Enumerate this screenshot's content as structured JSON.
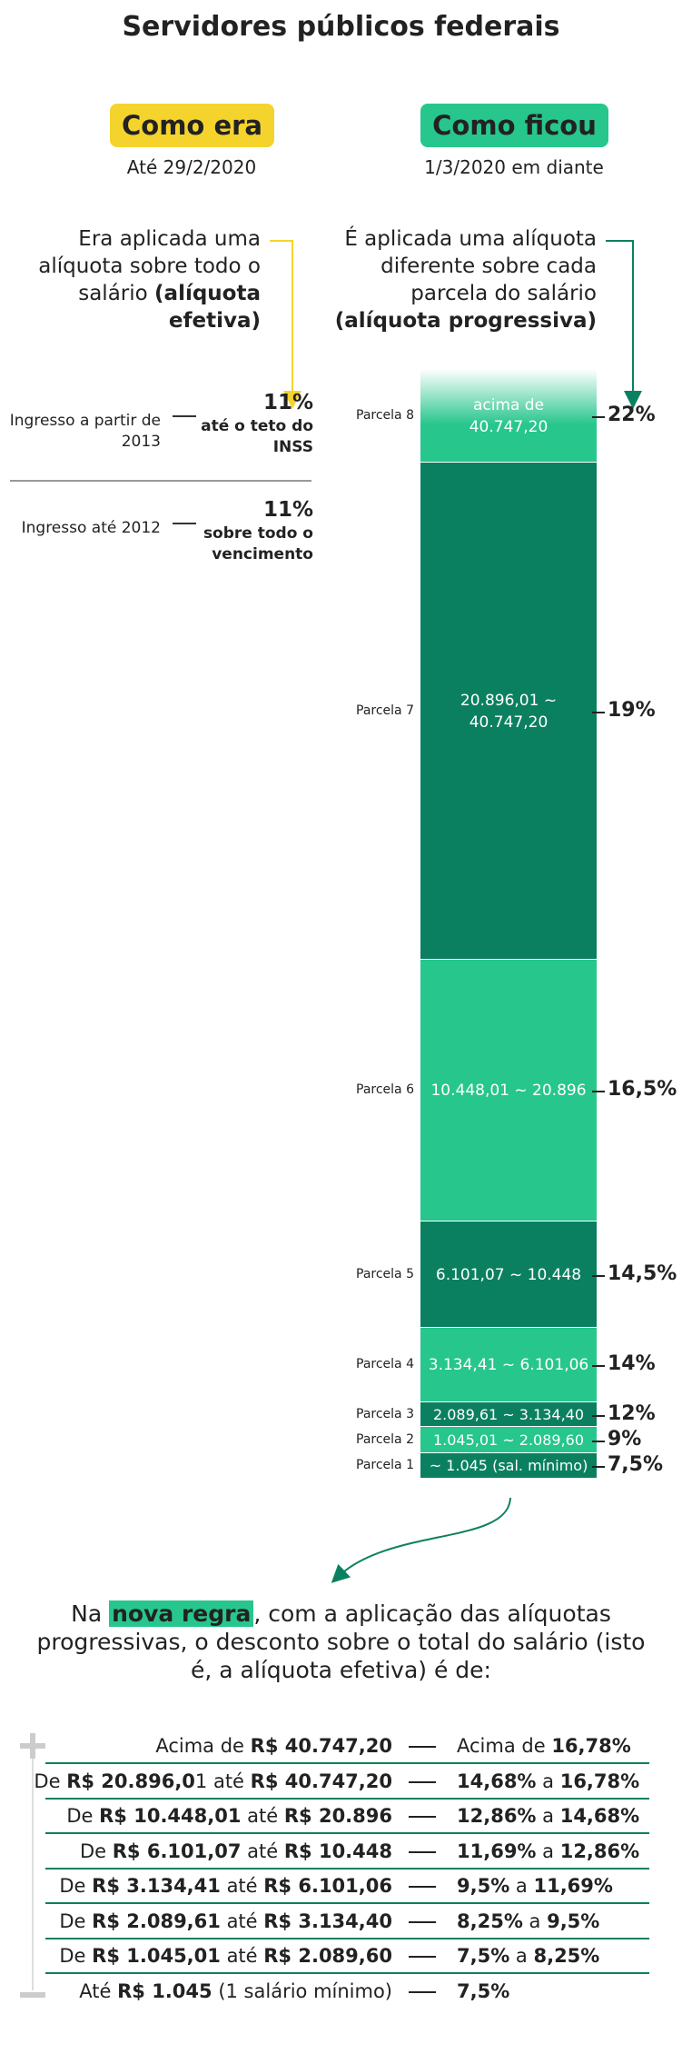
{
  "title": "Servidores públicos federais",
  "before": {
    "label": "Como era",
    "date": "Até 29/2/2020",
    "text": "Era aplicada uma alíquota sobre todo o salário",
    "text_bold": "(alíquota efetiva)",
    "rules": [
      {
        "group": "Ingresso a partir de 2013",
        "rate": "11%",
        "scope": "até o teto do INSS"
      },
      {
        "group": "Ingresso até 2012",
        "rate": "11%",
        "scope": "sobre todo o vencimento"
      }
    ]
  },
  "after": {
    "label": "Como ficou",
    "date": "1/3/2020 em diante",
    "text": "É aplicada uma alíquota diferente sobre cada parcela do salário",
    "text_bold": "(alíquota progressiva)",
    "parcels": [
      {
        "name": "Parcela 8",
        "range": "acima de 40.747,20",
        "rate": "22%"
      },
      {
        "name": "Parcela 7",
        "range": "20.896,01 ~ 40.747,20",
        "rate": "19%"
      },
      {
        "name": "Parcela 6",
        "range": "10.448,01 ~ 20.896",
        "rate": "16,5%"
      },
      {
        "name": "Parcela 5",
        "range": "6.101,07 ~ 10.448",
        "rate": "14,5%"
      },
      {
        "name": "Parcela 4",
        "range": "3.134,41 ~ 6.101,06",
        "rate": "14%"
      },
      {
        "name": "Parcela 3",
        "range": "2.089,61 ~ 3.134,40",
        "rate": "12%"
      },
      {
        "name": "Parcela 2",
        "range": "1.045,01 ~ 2.089,60",
        "rate": "9%"
      },
      {
        "name": "Parcela 1",
        "range": "~ 1.045 (sal. mínimo)",
        "rate": "7,5%"
      }
    ]
  },
  "summary": {
    "text_start": "Na ",
    "highlight": "nova regra",
    "text_end": ", com a aplicação das alíquotas progressivas, o desconto sobre o total do salário (isto é, a alíquota efetiva) é de:",
    "rows": [
      {
        "left": [
          "Acima de ",
          "R$ 40.747,20"
        ],
        "right": [
          "Acima de ",
          "16,78%"
        ]
      },
      {
        "left": [
          "De ",
          "R$ 20.896,0",
          "1 até ",
          "R$ 40.747,20"
        ],
        "right": [
          "",
          "14,68%",
          " a ",
          "16,78%"
        ]
      },
      {
        "left": [
          "De ",
          "R$ 10.448,01",
          " até ",
          "R$ 20.896"
        ],
        "right": [
          "",
          "12,86%",
          " a ",
          "14,68%"
        ]
      },
      {
        "left": [
          "De ",
          "R$ 6.101,07",
          " até ",
          "R$ 10.448"
        ],
        "right": [
          "",
          "11,69%",
          " a ",
          "12,86%"
        ]
      },
      {
        "left": [
          "De ",
          "R$ 3.134,41",
          " até ",
          "R$ 6.101,06"
        ],
        "right": [
          "",
          "9,5%",
          " a ",
          "11,69%"
        ]
      },
      {
        "left": [
          "De ",
          "R$ 2.089,61",
          " até ",
          "R$ 3.134,40"
        ],
        "right": [
          "",
          "8,25%",
          " a ",
          "9,5%"
        ]
      },
      {
        "left": [
          "De ",
          "R$ 1.045,01",
          " até ",
          "R$ 2.089,60"
        ],
        "right": [
          "",
          "7,5%",
          " a ",
          "8,25%"
        ]
      },
      {
        "left": [
          "Até ",
          "R$ 1.045",
          " (1 salário mínimo)"
        ],
        "right": [
          "",
          "7,5%"
        ]
      }
    ]
  }
}
